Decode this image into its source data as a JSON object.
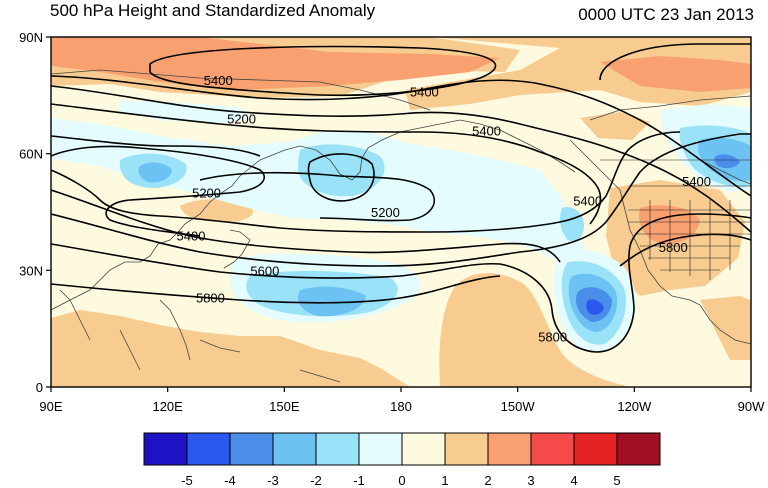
{
  "title_left": "500 hPa Height and Standardized Anomaly",
  "title_right": "0000 UTC 23 Jan 2013",
  "y_ticks": [
    {
      "lat": 90,
      "label": "90N"
    },
    {
      "lat": 60,
      "label": "60N"
    },
    {
      "lat": 30,
      "label": "30N"
    },
    {
      "lat": 0,
      "label": "0"
    }
  ],
  "x_ticks": [
    {
      "lon": 90,
      "label": "90E"
    },
    {
      "lon": 120,
      "label": "120E"
    },
    {
      "lon": 150,
      "label": "150E"
    },
    {
      "lon": 180,
      "label": "180"
    },
    {
      "lon": 210,
      "label": "150W"
    },
    {
      "lon": 240,
      "label": "120W"
    },
    {
      "lon": 270,
      "label": "90W"
    }
  ],
  "map_extent": {
    "lon": [
      90,
      270
    ],
    "lat": [
      0,
      90
    ]
  },
  "contour_labels": [
    {
      "text": "5400",
      "lon": 133,
      "lat": 79
    },
    {
      "text": "5400",
      "lon": 186,
      "lat": 76
    },
    {
      "text": "5400",
      "lon": 202,
      "lat": 66
    },
    {
      "text": "5400",
      "lon": 256,
      "lat": 53
    },
    {
      "text": "5400",
      "lon": 228,
      "lat": 48
    },
    {
      "text": "5400",
      "lon": 126,
      "lat": 39
    },
    {
      "text": "5200",
      "lon": 139,
      "lat": 69
    },
    {
      "text": "5200",
      "lon": 130,
      "lat": 50
    },
    {
      "text": "5200",
      "lon": 176,
      "lat": 45
    },
    {
      "text": "5600",
      "lon": 145,
      "lat": 30
    },
    {
      "text": "5800",
      "lon": 131,
      "lat": 23
    },
    {
      "text": "5800",
      "lon": 219,
      "lat": 13
    },
    {
      "text": "5800",
      "lon": 250,
      "lat": 36
    }
  ],
  "colorbar": {
    "labels": [
      "-5",
      "-4",
      "-3",
      "-2",
      "-1",
      "0",
      "1",
      "2",
      "3",
      "4",
      "5"
    ],
    "colors": [
      "#1d12c4",
      "#2a58ee",
      "#4a8ee9",
      "#6cc2f2",
      "#9ae2f8",
      "#e4fcfd",
      "#fefae0",
      "#f8cc90",
      "#f8a070",
      "#f44a4a",
      "#e42424",
      "#a00f23"
    ]
  }
}
